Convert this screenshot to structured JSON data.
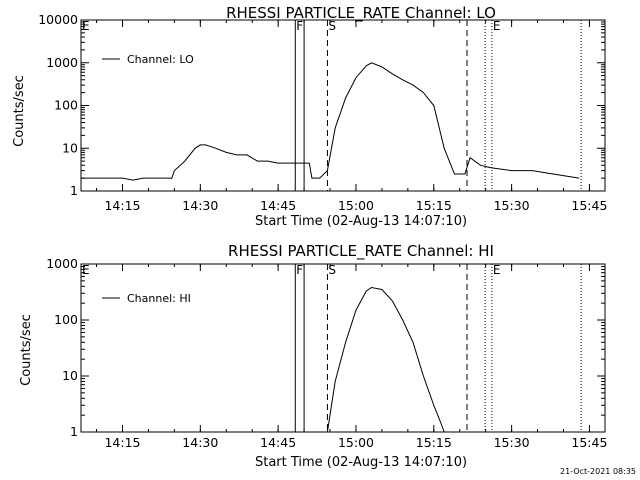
{
  "footer": {
    "timestamp": "21-Oct-2021 08:35"
  },
  "chart_data": [
    {
      "type": "line",
      "title": "RHESSI PARTICLE_RATE Channel: LO",
      "xlabel": "Start Time (02-Aug-13 14:07:10)",
      "ylabel": "Counts/sec",
      "y_scale": "log",
      "ylim": [
        1,
        10000
      ],
      "y_ticks": [
        "1",
        "10",
        "100",
        "1000",
        "10000"
      ],
      "xlim": [
        "14:07",
        "15:48"
      ],
      "x_ticks": [
        "14:15",
        "14:30",
        "14:45",
        "15:00",
        "15:15",
        "15:30",
        "15:45"
      ],
      "legend": "upper-left",
      "grid": false,
      "markers": [
        {
          "label": "E",
          "time": "14:07",
          "style": "dotted"
        },
        {
          "label": "F",
          "time": "14:48.3",
          "style": "solid"
        },
        {
          "label": "",
          "time": "14:50.0",
          "style": "solid"
        },
        {
          "label": "S",
          "time": "14:54.5",
          "style": "dashed"
        },
        {
          "label": "",
          "time": "15:21.4",
          "style": "dashed"
        },
        {
          "label": "E",
          "time": "15:26.2",
          "style": "dotted"
        },
        {
          "label": "",
          "time": "15:24.9",
          "style": "dotted",
          "where": "start"
        },
        {
          "label": "",
          "time": "15:43.4",
          "style": "dotted",
          "where": "end"
        }
      ],
      "series": [
        {
          "name": "Channel: LO",
          "points": [
            [
              "14:07",
              2
            ],
            [
              "14:10",
              2
            ],
            [
              "14:13",
              2
            ],
            [
              "14:15",
              2
            ],
            [
              "14:17",
              1.8
            ],
            [
              "14:19",
              2
            ],
            [
              "14:21",
              2
            ],
            [
              "14:23",
              2
            ],
            [
              "14:24.5",
              2
            ],
            [
              "14:25",
              3
            ],
            [
              "14:27",
              5
            ],
            [
              "14:29",
              10
            ],
            [
              "14:30",
              12
            ],
            [
              "14:31",
              12
            ],
            [
              "14:33",
              10
            ],
            [
              "14:35",
              8
            ],
            [
              "14:37",
              7
            ],
            [
              "14:39",
              7
            ],
            [
              "14:41",
              5
            ],
            [
              "14:43",
              5
            ],
            [
              "14:45",
              4.5
            ],
            [
              "14:47",
              4.5
            ],
            [
              "14:49",
              4.5
            ],
            [
              "14:51",
              4.5
            ],
            [
              "14:51.5",
              2
            ],
            [
              "14:53",
              2
            ],
            [
              "14:54.5",
              3
            ],
            [
              "14:56",
              30
            ],
            [
              "14:58",
              150
            ],
            [
              "15:00",
              450
            ],
            [
              "15:02",
              850
            ],
            [
              "15:03",
              1000
            ],
            [
              "15:05",
              800
            ],
            [
              "15:07",
              550
            ],
            [
              "15:09",
              400
            ],
            [
              "15:11",
              300
            ],
            [
              "15:13",
              200
            ],
            [
              "15:15",
              100
            ],
            [
              "15:17",
              10
            ],
            [
              "15:19",
              2.5
            ],
            [
              "15:21",
              2.5
            ],
            [
              "15:22",
              6
            ],
            [
              "15:24",
              4
            ],
            [
              "15:26",
              3.5
            ],
            [
              "15:30",
              3
            ],
            [
              "15:34",
              3
            ],
            [
              "15:38",
              2.5
            ],
            [
              "15:43",
              2
            ]
          ]
        }
      ]
    },
    {
      "type": "line",
      "title": "RHESSI PARTICLE_RATE Channel: HI",
      "xlabel": "Start Time (02-Aug-13 14:07:10)",
      "ylabel": "Counts/sec",
      "y_scale": "log",
      "ylim": [
        1,
        1000
      ],
      "y_ticks": [
        "1",
        "10",
        "100",
        "1000"
      ],
      "xlim": [
        "14:07",
        "15:48"
      ],
      "x_ticks": [
        "14:15",
        "14:30",
        "14:45",
        "15:00",
        "15:15",
        "15:30",
        "15:45"
      ],
      "legend": "upper-left",
      "grid": false,
      "markers": [
        {
          "label": "E",
          "time": "14:07",
          "style": "dotted"
        },
        {
          "label": "F",
          "time": "14:48.3",
          "style": "solid"
        },
        {
          "label": "",
          "time": "14:50.0",
          "style": "solid"
        },
        {
          "label": "S",
          "time": "14:54.5",
          "style": "dashed"
        },
        {
          "label": "",
          "time": "15:21.4",
          "style": "dashed"
        },
        {
          "label": "E",
          "time": "15:26.2",
          "style": "dotted"
        },
        {
          "label": "",
          "time": "15:24.9",
          "style": "dotted",
          "where": "start"
        },
        {
          "label": "",
          "time": "15:43.4",
          "style": "dotted",
          "where": "end"
        }
      ],
      "series": [
        {
          "name": "Channel: HI",
          "points": [
            [
              "14:54.5",
              1
            ],
            [
              "14:56",
              8
            ],
            [
              "14:58",
              40
            ],
            [
              "15:00",
              150
            ],
            [
              "15:02",
              330
            ],
            [
              "15:03",
              380
            ],
            [
              "15:05",
              350
            ],
            [
              "15:07",
              220
            ],
            [
              "15:09",
              100
            ],
            [
              "15:11",
              40
            ],
            [
              "15:13",
              10
            ],
            [
              "15:15",
              3
            ],
            [
              "15:16.3",
              1.5
            ],
            [
              "15:17",
              1
            ]
          ]
        }
      ]
    }
  ]
}
